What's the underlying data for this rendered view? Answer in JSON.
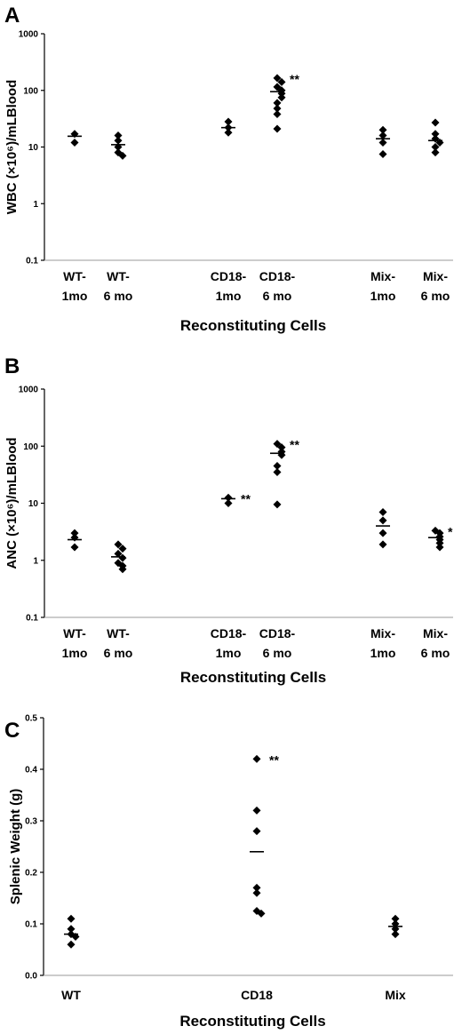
{
  "chart_data": [
    {
      "type": "scatter",
      "panel": "A",
      "ylabel": "WBC (×10⁶)/mLBlood",
      "xlabel": "Reconstituting Cells",
      "yscale": "log",
      "ylim": [
        0.1,
        1000
      ],
      "yticks": [
        "0.1",
        "1",
        "10",
        "100",
        "1000"
      ],
      "grid": false,
      "groups": [
        {
          "label": [
            "WT-",
            "1mo"
          ],
          "values": [
            17,
            12
          ],
          "mean": 15.5,
          "annotation": ""
        },
        {
          "label": [
            "WT-",
            "6 mo"
          ],
          "values": [
            16,
            13,
            10,
            8,
            7
          ],
          "mean": 11,
          "annotation": ""
        },
        {
          "label": [
            "CD18-",
            "1mo"
          ],
          "values": [
            28,
            22,
            18
          ],
          "mean": 22,
          "annotation": ""
        },
        {
          "label": [
            "CD18-",
            "6 mo"
          ],
          "values": [
            165,
            140,
            115,
            100,
            88,
            75,
            60,
            48,
            38,
            21
          ],
          "mean": 95,
          "annotation": "**"
        },
        {
          "label": [
            "Mix-",
            "1mo"
          ],
          "values": [
            20,
            16,
            12,
            7.5
          ],
          "mean": 14,
          "annotation": ""
        },
        {
          "label": [
            "Mix-",
            "6 mo"
          ],
          "values": [
            27,
            17,
            14,
            12,
            10,
            8
          ],
          "mean": 13,
          "annotation": ""
        }
      ]
    },
    {
      "type": "scatter",
      "panel": "B",
      "ylabel": "ANC (×10⁶)/mLBlood",
      "xlabel": "Reconstituting Cells",
      "yscale": "log",
      "ylim": [
        0.1,
        1000
      ],
      "yticks": [
        "0.1",
        "1",
        "10",
        "100",
        "1000"
      ],
      "grid": false,
      "groups": [
        {
          "label": [
            "WT-",
            "1mo"
          ],
          "values": [
            3.0,
            2.5,
            1.7
          ],
          "mean": 2.3,
          "annotation": ""
        },
        {
          "label": [
            "WT-",
            "6 mo"
          ],
          "values": [
            1.9,
            1.6,
            1.3,
            1.1,
            0.9,
            0.8,
            0.7
          ],
          "mean": 1.15,
          "annotation": ""
        },
        {
          "label": [
            "CD18-",
            "1mo"
          ],
          "values": [
            12.5,
            10
          ],
          "mean": 12,
          "annotation": "**"
        },
        {
          "label": [
            "CD18-",
            "6 mo"
          ],
          "values": [
            110,
            95,
            80,
            70,
            45,
            35,
            9.5
          ],
          "mean": 75,
          "annotation": "**"
        },
        {
          "label": [
            "Mix-",
            "1mo"
          ],
          "values": [
            7.0,
            5.0,
            3.0,
            1.9
          ],
          "mean": 4.0,
          "annotation": ""
        },
        {
          "label": [
            "Mix-",
            "6 mo"
          ],
          "values": [
            3.3,
            3.0,
            2.6,
            2.3,
            2.0,
            1.7
          ],
          "mean": 2.5,
          "annotation": "*"
        }
      ]
    },
    {
      "type": "scatter",
      "panel": "C",
      "ylabel": "Splenic Weight (g)",
      "xlabel": "Reconstituting Cells",
      "yscale": "linear",
      "ylim": [
        0.0,
        0.5
      ],
      "yticks": [
        "0.0",
        "0.1",
        "0.2",
        "0.3",
        "0.4",
        "0.5"
      ],
      "grid": false,
      "groups": [
        {
          "label": [
            "WT"
          ],
          "values": [
            0.11,
            0.09,
            0.08,
            0.075,
            0.06
          ],
          "mean": 0.08,
          "annotation": ""
        },
        {
          "label": [
            "CD18"
          ],
          "values": [
            0.42,
            0.32,
            0.28,
            0.17,
            0.16,
            0.125,
            0.12
          ],
          "mean": 0.24,
          "annotation": "**"
        },
        {
          "label": [
            "Mix"
          ],
          "values": [
            0.11,
            0.1,
            0.09,
            0.08
          ],
          "mean": 0.095,
          "annotation": ""
        }
      ]
    }
  ]
}
